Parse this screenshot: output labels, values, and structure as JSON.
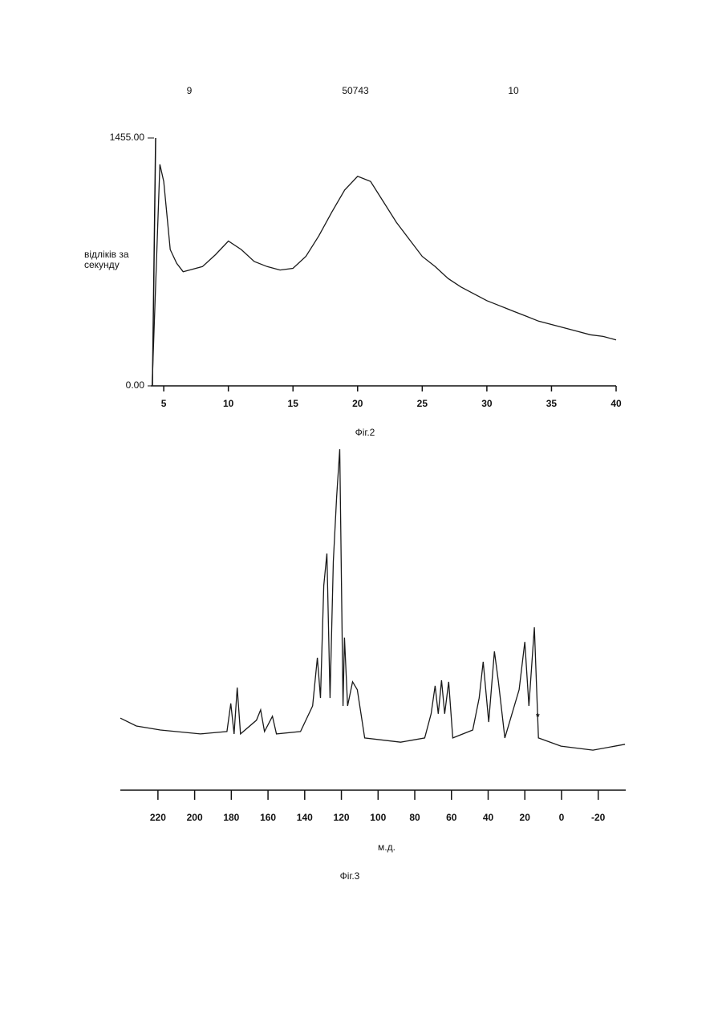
{
  "header": {
    "left": "9",
    "center": "50743",
    "right": "10"
  },
  "chart_data": [
    {
      "type": "line",
      "caption": "Фіг.2",
      "ylabel": [
        "відліків за",
        "секунду"
      ],
      "x": [
        4.1,
        4.7,
        5.0,
        5.5,
        6,
        6.5,
        7,
        8,
        9,
        10,
        11,
        12,
        13,
        14,
        15,
        16,
        17,
        18,
        19,
        20,
        21,
        22,
        23,
        24,
        25,
        26,
        27,
        28,
        29,
        30,
        31,
        32,
        33,
        34,
        35,
        36,
        37,
        38,
        39,
        40
      ],
      "values": [
        0,
        1300,
        1200,
        800,
        720,
        670,
        680,
        700,
        770,
        850,
        800,
        730,
        700,
        680,
        690,
        760,
        880,
        1020,
        1150,
        1230,
        1200,
        1080,
        960,
        860,
        760,
        700,
        630,
        580,
        540,
        500,
        470,
        440,
        410,
        380,
        360,
        340,
        320,
        300,
        290,
        270
      ],
      "color": "#1a1a1a",
      "xlim": [
        4,
        40
      ],
      "xticks": [
        5,
        10,
        15,
        20,
        25,
        30,
        35,
        40
      ],
      "ylim": [
        0,
        1455
      ],
      "yticks": [
        {
          "value": 0,
          "label": "0.00"
        },
        {
          "value": 1455,
          "label": "1455.00"
        }
      ]
    },
    {
      "type": "line",
      "caption": "Фіг.3",
      "xlabel": "м.д.",
      "annotation": {
        "text": "*",
        "x": 14,
        "y": 12
      },
      "x": [
        240.5,
        231.8,
        218.7,
        196.9,
        182.4,
        180.3,
        178.5,
        176.8,
        175.0,
        166.3,
        164.0,
        161.9,
        157.6,
        155.4,
        142.3,
        135.7,
        133.1,
        131.4,
        129.6,
        127.9,
        126.2,
        124.4,
        122.6,
        120.9,
        119.1,
        118.3,
        116.6,
        113.9,
        111.3,
        107.3,
        87.7,
        74.6,
        71.1,
        68.9,
        67.2,
        65.4,
        63.7,
        61.5,
        59.3,
        48.4,
        44.9,
        42.7,
        39.7,
        36.6,
        34.4,
        30.9,
        23.1,
        20.0,
        17.8,
        14.8,
        12.6,
        0.3,
        -17.1,
        -34.6
      ],
      "values": [
        11.8,
        9.2,
        7.9,
        6.6,
        7.4,
        16.6,
        6.6,
        21.8,
        6.6,
        11.1,
        14.5,
        7.4,
        12.4,
        6.6,
        7.4,
        15.8,
        31.6,
        18.4,
        55.3,
        65.8,
        18.4,
        63.2,
        84.2,
        100,
        15.8,
        38.2,
        15.8,
        23.7,
        21.1,
        5.3,
        3.9,
        5.3,
        13.2,
        22.4,
        13.2,
        24.2,
        13.2,
        23.7,
        5.3,
        7.9,
        18.4,
        30.3,
        10.5,
        33.7,
        23.7,
        5.3,
        21.1,
        36.8,
        15.8,
        41.6,
        5.3,
        2.6,
        1.3,
        3.2
      ],
      "color": "#1a1a1a",
      "xlim": [
        240.5,
        -35
      ],
      "xticks": [
        220,
        200,
        180,
        160,
        140,
        120,
        100,
        80,
        60,
        40,
        20,
        0,
        -20
      ],
      "ylim": [
        0,
        100
      ]
    }
  ]
}
